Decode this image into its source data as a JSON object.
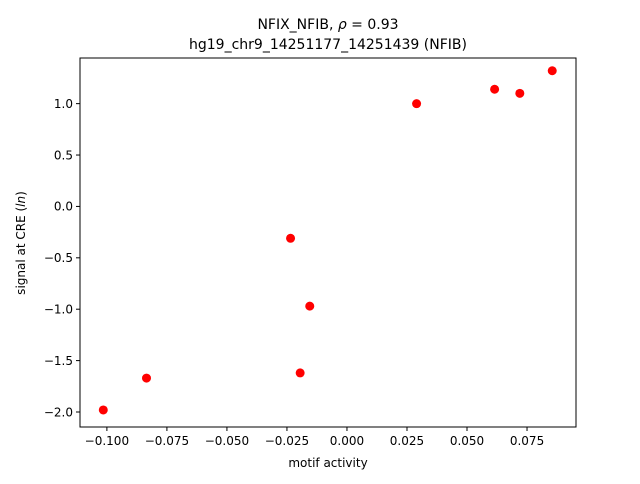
{
  "chart_data": {
    "type": "scatter",
    "title_line1_prefix": "NFIX_NFIB, ",
    "title_line1_rho": "ρ",
    "title_line1_suffix": " = 0.93",
    "title_line2": "hg19_chr9_14251177_14251439 (NFIB)",
    "xlabel": "motif activity",
    "ylabel_prefix": "signal at CRE (",
    "ylabel_italic": "ln",
    "ylabel_suffix": ")",
    "xlim": [
      -0.1112,
      0.0954
    ],
    "ylim": [
      -2.146,
      1.444
    ],
    "xticks": [
      {
        "value": -0.1,
        "label": "−0.100"
      },
      {
        "value": -0.075,
        "label": "−0.075"
      },
      {
        "value": -0.05,
        "label": "−0.050"
      },
      {
        "value": -0.025,
        "label": "−0.025"
      },
      {
        "value": 0.0,
        "label": "0.000"
      },
      {
        "value": 0.025,
        "label": "0.025"
      },
      {
        "value": 0.05,
        "label": "0.050"
      },
      {
        "value": 0.075,
        "label": "0.075"
      }
    ],
    "yticks": [
      {
        "value": -2.0,
        "label": "−2.0"
      },
      {
        "value": -1.5,
        "label": "−1.5"
      },
      {
        "value": -1.0,
        "label": "−1.0"
      },
      {
        "value": -0.5,
        "label": "−0.5"
      },
      {
        "value": 0.0,
        "label": "0.0"
      },
      {
        "value": 0.5,
        "label": "0.5"
      },
      {
        "value": 1.0,
        "label": "1.0"
      }
    ],
    "points": [
      {
        "x": -0.1015,
        "y": -1.98
      },
      {
        "x": -0.0835,
        "y": -1.67
      },
      {
        "x": -0.0235,
        "y": -0.31
      },
      {
        "x": -0.0195,
        "y": -1.62
      },
      {
        "x": -0.0155,
        "y": -0.97
      },
      {
        "x": 0.029,
        "y": 1.0
      },
      {
        "x": 0.0615,
        "y": 1.14
      },
      {
        "x": 0.072,
        "y": 1.1
      },
      {
        "x": 0.0855,
        "y": 1.32
      }
    ],
    "marker_color": "#ff0000",
    "grid": false,
    "legend": false
  }
}
